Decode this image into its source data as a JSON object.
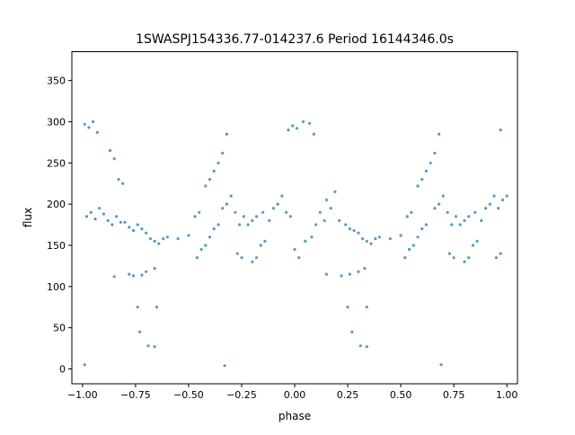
{
  "chart_data": {
    "type": "scatter",
    "title": "1SWASPJ154336.77-014237.6 Period 16144346.0s",
    "xlabel": "phase",
    "ylabel": "flux",
    "xlim": [
      -1.05,
      1.05
    ],
    "ylim": [
      -18,
      385
    ],
    "x_ticks": [
      -1.0,
      -0.75,
      -0.5,
      -0.25,
      0.0,
      0.25,
      0.5,
      0.75,
      1.0
    ],
    "x_tick_labels": [
      "−1.00",
      "−0.75",
      "−0.50",
      "−0.25",
      "0.00",
      "0.25",
      "0.50",
      "0.75",
      "1.00"
    ],
    "y_ticks": [
      0,
      50,
      100,
      150,
      200,
      250,
      300,
      350
    ],
    "y_tick_labels": [
      "0",
      "50",
      "100",
      "150",
      "200",
      "250",
      "300",
      "350"
    ],
    "grid": false,
    "legend": "none",
    "marker_color": "#1f77b4",
    "series": [
      {
        "values": [
          [
            -0.99,
            297
          ],
          [
            -0.97,
            293
          ],
          [
            -0.95,
            300
          ],
          [
            -0.93,
            287
          ],
          [
            -0.98,
            185
          ],
          [
            -0.96,
            190
          ],
          [
            -0.94,
            182
          ],
          [
            -0.92,
            195
          ],
          [
            -0.9,
            188
          ],
          [
            -0.88,
            180
          ],
          [
            -0.86,
            175
          ],
          [
            -0.84,
            185
          ],
          [
            -0.82,
            178
          ],
          [
            -0.87,
            265
          ],
          [
            -0.85,
            255
          ],
          [
            -0.83,
            230
          ],
          [
            -0.81,
            225
          ],
          [
            -0.85,
            112
          ],
          [
            -0.78,
            115
          ],
          [
            -0.76,
            113
          ],
          [
            -0.72,
            114
          ],
          [
            -0.7,
            118
          ],
          [
            -0.66,
            122
          ],
          [
            -0.8,
            178
          ],
          [
            -0.78,
            172
          ],
          [
            -0.76,
            168
          ],
          [
            -0.74,
            175
          ],
          [
            -0.72,
            170
          ],
          [
            -0.7,
            165
          ],
          [
            -0.68,
            158
          ],
          [
            -0.66,
            155
          ],
          [
            -0.64,
            152
          ],
          [
            -0.62,
            158
          ],
          [
            -0.6,
            160
          ],
          [
            -0.74,
            75
          ],
          [
            -0.65,
            75
          ],
          [
            -0.73,
            45
          ],
          [
            -0.69,
            28
          ],
          [
            -0.66,
            27
          ],
          [
            -0.55,
            158
          ],
          [
            -0.5,
            162
          ],
          [
            -0.47,
            185
          ],
          [
            -0.45,
            190
          ],
          [
            -0.46,
            135
          ],
          [
            -0.44,
            145
          ],
          [
            -0.42,
            150
          ],
          [
            -0.4,
            160
          ],
          [
            -0.38,
            170
          ],
          [
            -0.36,
            175
          ],
          [
            -0.42,
            222
          ],
          [
            -0.4,
            230
          ],
          [
            -0.38,
            240
          ],
          [
            -0.36,
            250
          ],
          [
            -0.34,
            262
          ],
          [
            -0.32,
            285
          ],
          [
            -0.34,
            195
          ],
          [
            -0.32,
            200
          ],
          [
            -0.3,
            210
          ],
          [
            -0.28,
            190
          ],
          [
            -0.26,
            175
          ],
          [
            -0.24,
            185
          ],
          [
            -0.27,
            140
          ],
          [
            -0.25,
            135
          ],
          [
            -0.22,
            175
          ],
          [
            -0.2,
            180
          ],
          [
            -0.18,
            185
          ],
          [
            -0.15,
            190
          ],
          [
            -0.2,
            130
          ],
          [
            -0.18,
            135
          ],
          [
            -0.16,
            150
          ],
          [
            -0.14,
            155
          ],
          [
            -0.12,
            180
          ],
          [
            -0.1,
            195
          ],
          [
            -0.08,
            200
          ],
          [
            -0.06,
            210
          ],
          [
            -0.04,
            190
          ],
          [
            -0.02,
            185
          ],
          [
            -0.03,
            290
          ],
          [
            -0.01,
            295
          ],
          [
            0.01,
            292
          ],
          [
            0.04,
            300
          ],
          [
            0.07,
            298
          ],
          [
            0.09,
            285
          ],
          [
            0.0,
            145
          ],
          [
            0.02,
            135
          ],
          [
            0.05,
            155
          ],
          [
            0.08,
            160
          ],
          [
            0.1,
            175
          ],
          [
            0.12,
            190
          ],
          [
            0.14,
            180
          ],
          [
            0.15,
            205
          ],
          [
            0.17,
            195
          ],
          [
            0.19,
            215
          ],
          [
            0.15,
            115
          ],
          [
            0.22,
            113
          ],
          [
            0.26,
            115
          ],
          [
            0.3,
            118
          ],
          [
            0.33,
            122
          ],
          [
            0.21,
            180
          ],
          [
            0.24,
            175
          ],
          [
            0.26,
            170
          ],
          [
            0.28,
            168
          ],
          [
            0.3,
            165
          ],
          [
            0.32,
            158
          ],
          [
            0.34,
            155
          ],
          [
            0.36,
            152
          ],
          [
            0.38,
            158
          ],
          [
            0.4,
            160
          ],
          [
            0.25,
            75
          ],
          [
            0.34,
            75
          ],
          [
            0.27,
            45
          ],
          [
            0.31,
            28
          ],
          [
            0.34,
            27
          ],
          [
            0.45,
            158
          ],
          [
            0.5,
            162
          ],
          [
            0.53,
            185
          ],
          [
            0.55,
            190
          ],
          [
            0.52,
            135
          ],
          [
            0.54,
            145
          ],
          [
            0.56,
            150
          ],
          [
            0.58,
            160
          ],
          [
            0.6,
            170
          ],
          [
            0.62,
            175
          ],
          [
            0.58,
            222
          ],
          [
            0.6,
            230
          ],
          [
            0.62,
            240
          ],
          [
            0.64,
            250
          ],
          [
            0.66,
            262
          ],
          [
            0.68,
            285
          ],
          [
            0.66,
            195
          ],
          [
            0.68,
            200
          ],
          [
            0.7,
            210
          ],
          [
            0.72,
            190
          ],
          [
            0.74,
            175
          ],
          [
            0.76,
            185
          ],
          [
            0.73,
            140
          ],
          [
            0.75,
            135
          ],
          [
            0.78,
            175
          ],
          [
            0.8,
            180
          ],
          [
            0.82,
            185
          ],
          [
            0.85,
            190
          ],
          [
            0.8,
            130
          ],
          [
            0.82,
            135
          ],
          [
            0.84,
            150
          ],
          [
            0.86,
            155
          ],
          [
            0.88,
            180
          ],
          [
            0.9,
            195
          ],
          [
            0.92,
            200
          ],
          [
            0.94,
            210
          ],
          [
            0.96,
            195
          ],
          [
            0.98,
            205
          ],
          [
            1.0,
            210
          ],
          [
            0.97,
            290
          ],
          [
            0.95,
            135
          ],
          [
            0.97,
            140
          ],
          [
            -0.99,
            5
          ],
          [
            -0.33,
            4
          ],
          [
            0.69,
            5
          ]
        ]
      }
    ]
  }
}
